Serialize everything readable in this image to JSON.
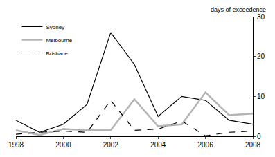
{
  "chart_data": {
    "type": "line",
    "ylabel": "days of exceedence",
    "x": [
      1998,
      1999,
      2000,
      2001,
      2002,
      2003,
      2004,
      2005,
      2006,
      2007,
      2008
    ],
    "series": [
      {
        "name": "Sydney",
        "color": "#000000",
        "line_style": "solid",
        "values": [
          4,
          1,
          3,
          8,
          26,
          18,
          5,
          10,
          9,
          4,
          3
        ]
      },
      {
        "name": "Melbourne",
        "color": "#b4b4b4",
        "line_style": "solid",
        "values": [
          1.5,
          0.3,
          1.8,
          1.5,
          1.5,
          9.3,
          2.5,
          3,
          11,
          5.3,
          5.7
        ]
      },
      {
        "name": "Brisbane",
        "color": "#000000",
        "line_style": "dashed",
        "values": [
          0.5,
          1,
          1.3,
          1,
          9,
          1.5,
          1.8,
          3.8,
          0.1,
          1,
          1.3
        ]
      }
    ],
    "xlim": [
      1998,
      2008
    ],
    "xticks": [
      1998,
      2000,
      2002,
      2004,
      2006,
      2008
    ],
    "ylim": [
      0,
      30
    ],
    "yticks": [
      0,
      10,
      20,
      30
    ],
    "grid": false,
    "legend": "top-left"
  }
}
